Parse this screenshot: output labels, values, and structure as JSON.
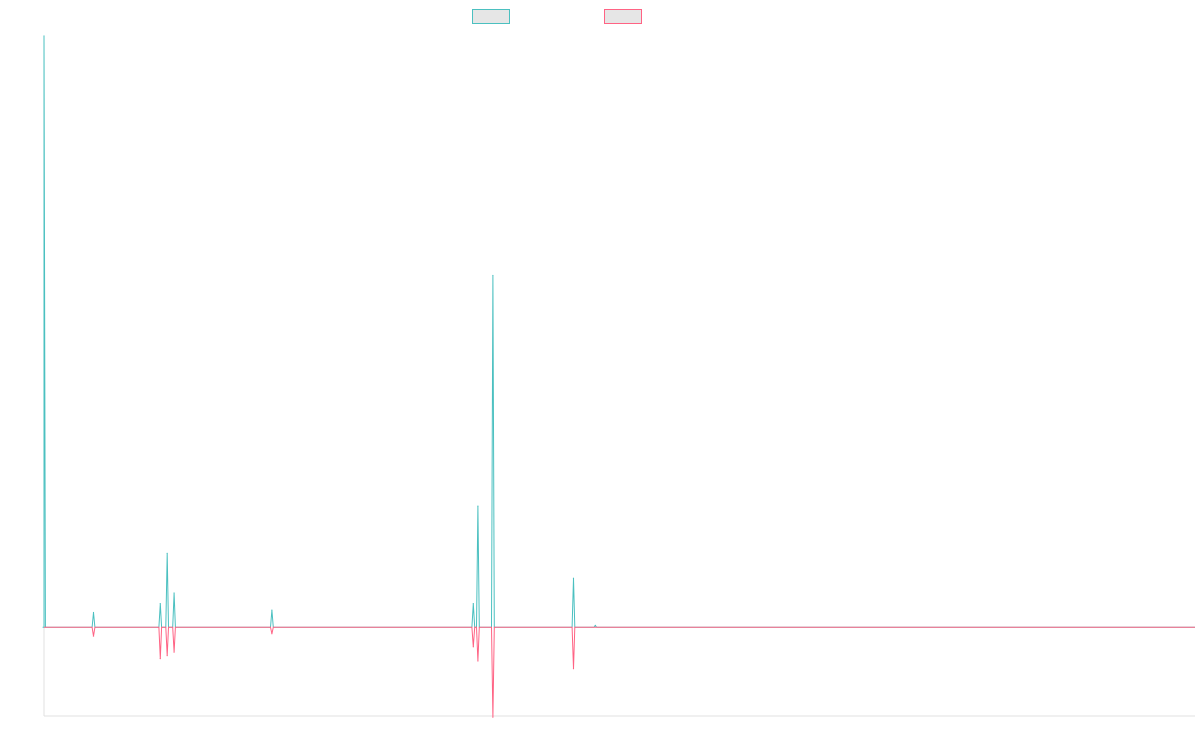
{
  "chart_data": {
    "type": "line",
    "title": "",
    "xlabel": "",
    "ylabel": "",
    "grid": false,
    "legend_position": "top-center",
    "x": [
      0,
      0.1,
      1,
      2,
      3,
      4,
      5,
      6,
      7,
      8,
      9,
      10,
      11,
      12,
      13,
      14,
      15,
      16,
      17,
      18,
      19,
      20,
      21,
      22,
      23,
      24,
      25,
      26
    ],
    "xlim": [
      0,
      100
    ],
    "ylim": [
      -0.15,
      1.0
    ],
    "series": [
      {
        "name": "",
        "color": "#4bc0c0",
        "values": [
          1.0,
          0.0,
          0.0,
          0.0,
          0.0,
          0.0,
          0.0,
          0.0,
          0.0,
          0.0,
          0.0,
          0.0,
          0.0,
          0.0,
          0.0,
          0.0,
          0.0,
          0.0,
          0.0,
          0.0,
          0.0,
          0.0,
          0.0,
          0.0,
          0.0,
          0.0,
          0.0,
          0.0
        ]
      },
      {
        "name": "",
        "color": "#ff6384",
        "values": [
          -0.02,
          0.0,
          0.0,
          0.0,
          0.0,
          0.0,
          0.0,
          0.0,
          0.0,
          0.0,
          0.0,
          0.0,
          0.0,
          0.0,
          0.0,
          0.0,
          0.0,
          0.0,
          0.0,
          0.0,
          0.0,
          0.0,
          0.0,
          0.0,
          0.0,
          0.0,
          0.0,
          0.0
        ]
      }
    ],
    "peaks": {
      "series_a": [
        {
          "x": 0.0,
          "y": 1.0
        },
        {
          "x": 4.3,
          "y": 0.025
        },
        {
          "x": 10.1,
          "y": 0.04
        },
        {
          "x": 10.7,
          "y": 0.125
        },
        {
          "x": 11.3,
          "y": 0.058
        },
        {
          "x": 19.8,
          "y": 0.029
        },
        {
          "x": 37.3,
          "y": 0.04
        },
        {
          "x": 37.7,
          "y": 0.205
        },
        {
          "x": 39.0,
          "y": 0.595
        },
        {
          "x": 46.0,
          "y": 0.083
        },
        {
          "x": 47.9,
          "y": 0.003
        }
      ],
      "series_b": [
        {
          "x": 4.3,
          "y": -0.015
        },
        {
          "x": 10.1,
          "y": -0.053
        },
        {
          "x": 10.7,
          "y": -0.048
        },
        {
          "x": 11.3,
          "y": -0.042
        },
        {
          "x": 19.8,
          "y": -0.011
        },
        {
          "x": 37.3,
          "y": -0.033
        },
        {
          "x": 37.7,
          "y": -0.057
        },
        {
          "x": 39.0,
          "y": -0.152
        },
        {
          "x": 46.0,
          "y": -0.07
        }
      ]
    }
  }
}
